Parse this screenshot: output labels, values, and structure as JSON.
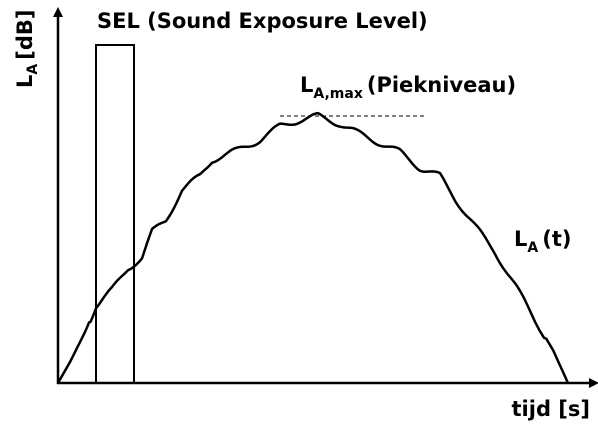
{
  "y_axis_label": {
    "main": "L",
    "sub": "A",
    "unit": "[dB]"
  },
  "sel_label": "SEL (Sound Exposure Level)",
  "peak_label": {
    "main": "L",
    "sub": "A,max",
    "rest": "(Piekniveau)"
  },
  "curve_label": {
    "main": "L",
    "sub": "A",
    "rest": "(t)"
  },
  "x_axis_label": "tijd [s]"
}
